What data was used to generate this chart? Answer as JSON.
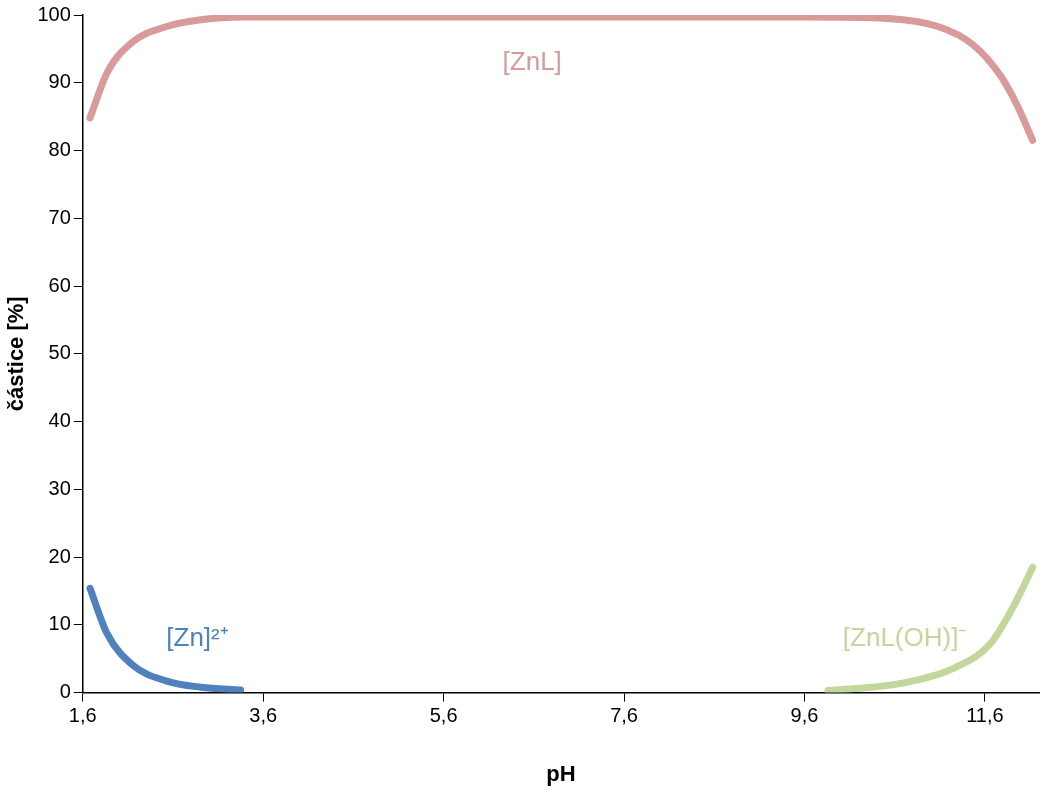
{
  "chart_data": {
    "type": "line",
    "xlabel": "pH",
    "ylabel": "částice [%]",
    "xlim": [
      1.6,
      12.2
    ],
    "ylim": [
      0,
      100
    ],
    "xticks": [
      {
        "value": 1.6,
        "label": "1,6"
      },
      {
        "value": 3.6,
        "label": "3,6"
      },
      {
        "value": 5.6,
        "label": "5,6"
      },
      {
        "value": 7.6,
        "label": "7,6"
      },
      {
        "value": 9.6,
        "label": "9,6"
      },
      {
        "value": 11.6,
        "label": "11,6"
      }
    ],
    "yticks": [
      0,
      10,
      20,
      30,
      40,
      50,
      60,
      70,
      80,
      90,
      100
    ],
    "grid": false,
    "legend": false,
    "marker": "none",
    "line_style": "solid",
    "series": [
      {
        "name": "[Zn]²⁺",
        "color": "#4f81bd",
        "x": [
          1.68,
          1.87,
          2.15,
          2.53,
          2.91,
          3.35
        ],
        "values": [
          15.4,
          8.7,
          4.1,
          1.7,
          0.8,
          0.4
        ]
      },
      {
        "name": "[ZnL]",
        "color": "#d99a9a",
        "x": [
          1.68,
          1.87,
          2.15,
          2.53,
          2.91,
          3.4,
          9.6,
          10.51,
          11.08,
          11.46,
          11.77,
          11.96,
          12.13
        ],
        "values": [
          84.8,
          91.5,
          96,
          98.3,
          99.3,
          99.7,
          99.7,
          99.5,
          98.3,
          95.7,
          91.1,
          86.6,
          81.5
        ]
      },
      {
        "name": "[ZnL(OH)]⁻",
        "color": "#c3d69b",
        "x": [
          9.86,
          10.69,
          11.27,
          11.66,
          11.92,
          12.13
        ],
        "values": [
          0.3,
          1.4,
          3.7,
          7.2,
          12.8,
          18.5
        ]
      }
    ]
  }
}
